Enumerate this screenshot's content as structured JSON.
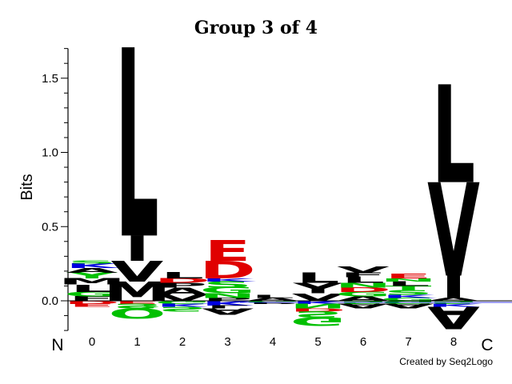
{
  "chart_data": {
    "type": "sequence-logo",
    "title": "Group 3 of 4",
    "ylabel": "Bits",
    "ylim": [
      -0.2,
      1.7
    ],
    "yticks": [
      0.0,
      0.5,
      1.0,
      1.5
    ],
    "yticks_labels": [
      "0.0",
      "0.5",
      "1.0",
      "1.5"
    ],
    "positions": [
      "0",
      "1",
      "2",
      "3",
      "4",
      "5",
      "6",
      "7",
      "8"
    ],
    "n_label": "N",
    "c_label": "C",
    "credit": "Created by Seq2Logo",
    "colors": {
      "hydrophobic": "#000000",
      "acidic": "#e00000",
      "basic": "#0000e0",
      "polar": "#00c000"
    },
    "columns": [
      {
        "position": "0",
        "positive": [
          {
            "letter": "F",
            "value": 0.03,
            "color": "#000000"
          },
          {
            "letter": "G",
            "value": 0.03,
            "color": "#00c000"
          },
          {
            "letter": "L",
            "value": 0.05,
            "color": "#000000"
          },
          {
            "letter": "M",
            "value": 0.04,
            "color": "#000000"
          },
          {
            "letter": "Y",
            "value": 0.04,
            "color": "#00c000"
          },
          {
            "letter": "A",
            "value": 0.03,
            "color": "#000000"
          },
          {
            "letter": "K",
            "value": 0.03,
            "color": "#0000e0"
          },
          {
            "letter": "S",
            "value": 0.02,
            "color": "#00c000"
          }
        ],
        "negative": [
          {
            "letter": "D",
            "value": 0.02,
            "color": "#e00000"
          },
          {
            "letter": "E",
            "value": 0.02,
            "color": "#e00000"
          }
        ]
      },
      {
        "position": "1",
        "positive": [
          {
            "letter": "M",
            "value": 0.13,
            "color": "#000000"
          },
          {
            "letter": "V",
            "value": 0.14,
            "color": "#000000"
          },
          {
            "letter": "I",
            "value": 0.17,
            "color": "#000000"
          },
          {
            "letter": "L",
            "value": 1.27,
            "color": "#000000"
          }
        ],
        "negative": [
          {
            "letter": "E",
            "value": 0.02,
            "color": "#e00000"
          },
          {
            "letter": "S",
            "value": 0.03,
            "color": "#00c000"
          },
          {
            "letter": "Q",
            "value": 0.07,
            "color": "#00c000"
          }
        ]
      },
      {
        "position": "2",
        "positive": [
          {
            "letter": "V",
            "value": 0.04,
            "color": "#000000"
          },
          {
            "letter": "A",
            "value": 0.05,
            "color": "#000000"
          },
          {
            "letter": "P",
            "value": 0.03,
            "color": "#000000"
          },
          {
            "letter": "D",
            "value": 0.03,
            "color": "#e00000"
          },
          {
            "letter": "L",
            "value": 0.04,
            "color": "#000000"
          }
        ],
        "negative": [
          {
            "letter": "G",
            "value": 0.02,
            "color": "#00c000"
          },
          {
            "letter": "K",
            "value": 0.02,
            "color": "#0000e0"
          },
          {
            "letter": "S",
            "value": 0.03,
            "color": "#00c000"
          }
        ]
      },
      {
        "position": "3",
        "positive": [
          {
            "letter": "P",
            "value": 0.02,
            "color": "#000000"
          },
          {
            "letter": "N",
            "value": 0.03,
            "color": "#00c000"
          },
          {
            "letter": "G",
            "value": 0.04,
            "color": "#00c000"
          },
          {
            "letter": "S",
            "value": 0.04,
            "color": "#00c000"
          },
          {
            "letter": "K",
            "value": 0.02,
            "color": "#0000e0"
          },
          {
            "letter": "D",
            "value": 0.12,
            "color": "#e00000"
          },
          {
            "letter": "E",
            "value": 0.14,
            "color": "#e00000"
          }
        ],
        "negative": [
          {
            "letter": "K",
            "value": 0.03,
            "color": "#0000e0"
          },
          {
            "letter": "L",
            "value": 0.02,
            "color": "#000000"
          },
          {
            "letter": "A",
            "value": 0.04,
            "color": "#000000"
          }
        ]
      },
      {
        "position": "4",
        "positive": [
          {
            "letter": "A",
            "value": 0.02,
            "color": "#000000"
          },
          {
            "letter": "L",
            "value": 0.02,
            "color": "#000000"
          }
        ],
        "negative": [
          {
            "letter": "G",
            "value": 0.01,
            "color": "#00c000"
          },
          {
            "letter": "P",
            "value": 0.01,
            "color": "#000000"
          }
        ]
      },
      {
        "position": "5",
        "positive": [
          {
            "letter": "V",
            "value": 0.05,
            "color": "#000000"
          },
          {
            "letter": "Y",
            "value": 0.07,
            "color": "#000000"
          },
          {
            "letter": "L",
            "value": 0.07,
            "color": "#000000"
          }
        ],
        "negative": [
          {
            "letter": "K",
            "value": 0.02,
            "color": "#0000e0"
          },
          {
            "letter": "N",
            "value": 0.03,
            "color": "#00c000"
          },
          {
            "letter": "D",
            "value": 0.02,
            "color": "#e00000"
          },
          {
            "letter": "S",
            "value": 0.04,
            "color": "#00c000"
          },
          {
            "letter": "G",
            "value": 0.06,
            "color": "#00c000"
          }
        ]
      },
      {
        "position": "6",
        "positive": [
          {
            "letter": "A",
            "value": 0.03,
            "color": "#000000"
          },
          {
            "letter": "G",
            "value": 0.03,
            "color": "#00c000"
          },
          {
            "letter": "D",
            "value": 0.03,
            "color": "#e00000"
          },
          {
            "letter": "N",
            "value": 0.03,
            "color": "#00c000"
          },
          {
            "letter": "L",
            "value": 0.04,
            "color": "#000000"
          },
          {
            "letter": "F",
            "value": 0.03,
            "color": "#000000"
          },
          {
            "letter": "V",
            "value": 0.04,
            "color": "#000000"
          }
        ],
        "negative": [
          {
            "letter": "S",
            "value": 0.02,
            "color": "#00c000"
          },
          {
            "letter": "A",
            "value": 0.03,
            "color": "#000000"
          }
        ]
      },
      {
        "position": "7",
        "positive": [
          {
            "letter": "G",
            "value": 0.02,
            "color": "#00c000"
          },
          {
            "letter": "K",
            "value": 0.02,
            "color": "#0000e0"
          },
          {
            "letter": "S",
            "value": 0.03,
            "color": "#00c000"
          },
          {
            "letter": "T",
            "value": 0.03,
            "color": "#00c000"
          },
          {
            "letter": "L",
            "value": 0.03,
            "color": "#000000"
          },
          {
            "letter": "N",
            "value": 0.02,
            "color": "#00c000"
          },
          {
            "letter": "E",
            "value": 0.03,
            "color": "#e00000"
          }
        ],
        "negative": [
          {
            "letter": "G",
            "value": 0.02,
            "color": "#00c000"
          },
          {
            "letter": "A",
            "value": 0.03,
            "color": "#000000"
          }
        ]
      },
      {
        "position": "8",
        "positive": [
          {
            "letter": "A",
            "value": 0.02,
            "color": "#000000"
          },
          {
            "letter": "I",
            "value": 0.15,
            "color": "#000000"
          },
          {
            "letter": "V",
            "value": 0.63,
            "color": "#000000"
          },
          {
            "letter": "L",
            "value": 0.66,
            "color": "#000000"
          }
        ],
        "negative": [
          {
            "letter": "S",
            "value": 0.02,
            "color": "#00c000"
          },
          {
            "letter": "K",
            "value": 0.02,
            "color": "#0000e0"
          },
          {
            "letter": "A",
            "value": 0.15,
            "color": "#000000"
          }
        ]
      }
    ]
  }
}
